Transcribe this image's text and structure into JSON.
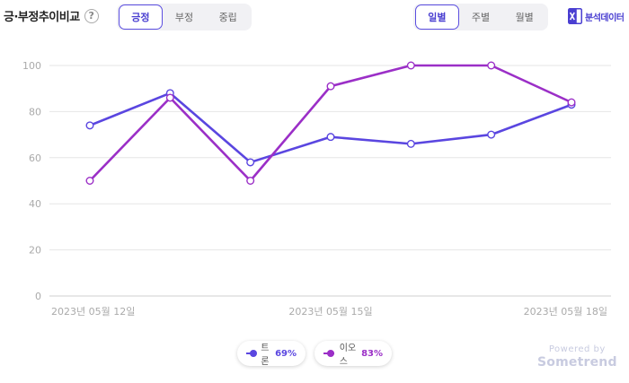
{
  "header": {
    "title": "긍·부정추이비교",
    "help_glyph": "?",
    "sentiment_tabs": [
      "긍정",
      "부정",
      "중립"
    ],
    "sentiment_active": 0,
    "period_tabs": [
      "일별",
      "주별",
      "월별"
    ],
    "period_active": 0,
    "export_label": "분석데이터",
    "export_icon": "excel-icon",
    "accent_color": "#4a3fd1"
  },
  "legend": [
    {
      "name": "트론",
      "value": "69%",
      "color": "#5a46e0"
    },
    {
      "name": "이오스",
      "value": "83%",
      "color": "#9b2fc7"
    }
  ],
  "watermark": {
    "line1": "Powered by",
    "line2": "Sometrend"
  },
  "chart_data": {
    "type": "line",
    "x": [
      "2023-05-12",
      "2023-05-13",
      "2023-05-14",
      "2023-05-15",
      "2023-05-16",
      "2023-05-17",
      "2023-05-18"
    ],
    "x_tick_labels": [
      {
        "index": 0,
        "label": "2023년 05월 12일"
      },
      {
        "index": 3,
        "label": "2023년 05월 15일"
      },
      {
        "index": 6,
        "label": "2023년 05월 18일"
      }
    ],
    "yticks": [
      0,
      20,
      40,
      60,
      80,
      100
    ],
    "ylim": [
      0,
      100
    ],
    "grid": true,
    "legend_position": "bottom",
    "series": [
      {
        "name": "트론",
        "color": "#5a46e0",
        "values": [
          74,
          88,
          58,
          69,
          66,
          70,
          83
        ]
      },
      {
        "name": "이오스",
        "color": "#9b2fc7",
        "values": [
          50,
          86,
          50,
          91,
          100,
          100,
          84
        ]
      }
    ]
  }
}
